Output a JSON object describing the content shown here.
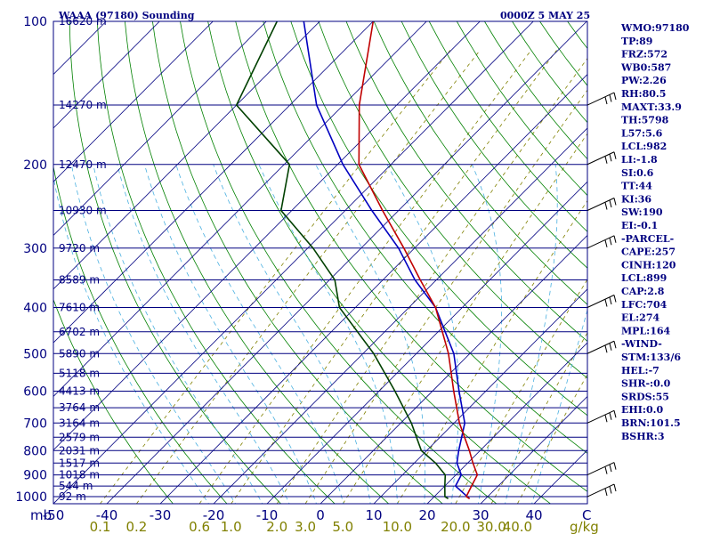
{
  "chart_data": {
    "type": "skew-t",
    "title": "WAAA (97180) Sounding",
    "time": "0000Z  5 MAY 25",
    "pressure_labels": [
      "100",
      "200",
      "300",
      "400",
      "500",
      "600",
      "700",
      "800",
      "900",
      "1000"
    ],
    "pressure_unit": "mb",
    "height_labels": [
      {
        "p": 100,
        "label": "16620 m"
      },
      {
        "p": 150,
        "label": "14270 m"
      },
      {
        "p": 200,
        "label": "12470 m"
      },
      {
        "p": 250,
        "label": "10930 m"
      },
      {
        "p": 300,
        "label": "9720 m"
      },
      {
        "p": 350,
        "label": "8589 m"
      },
      {
        "p": 400,
        "label": "7610 m"
      },
      {
        "p": 450,
        "label": "6702 m"
      },
      {
        "p": 500,
        "label": "5890 m"
      },
      {
        "p": 550,
        "label": "5118 m"
      },
      {
        "p": 600,
        "label": "4413 m"
      },
      {
        "p": 650,
        "label": "3764 m"
      },
      {
        "p": 700,
        "label": "3164 m"
      },
      {
        "p": 750,
        "label": "2579 m"
      },
      {
        "p": 800,
        "label": "2031 m"
      },
      {
        "p": 850,
        "label": "1517 m"
      },
      {
        "p": 900,
        "label": "1018 m"
      },
      {
        "p": 950,
        "label": "544 m"
      },
      {
        "p": 1000,
        "label": "92 m"
      }
    ],
    "temperature_ticks": [
      "-50",
      "-40",
      "-30",
      "-20",
      "-10",
      "0",
      "10",
      "20",
      "30",
      "40"
    ],
    "temperature_unit": "C",
    "mixing_ratio_ticks": [
      "0.1",
      "0.2",
      "0.6",
      "1.0",
      "2.0",
      "3.0",
      "5.0",
      "10.0",
      "20.0",
      "30.0",
      "40.0"
    ],
    "mixing_ratio_unit": "g/kg",
    "temperature_profile": [
      {
        "p": 1010,
        "t": 27
      },
      {
        "p": 1000,
        "t": 26
      },
      {
        "p": 950,
        "t": 25
      },
      {
        "p": 900,
        "t": 24
      },
      {
        "p": 850,
        "t": 21
      },
      {
        "p": 800,
        "t": 18
      },
      {
        "p": 700,
        "t": 11
      },
      {
        "p": 600,
        "t": 4
      },
      {
        "p": 500,
        "t": -4
      },
      {
        "p": 400,
        "t": -15
      },
      {
        "p": 350,
        "t": -23
      },
      {
        "p": 300,
        "t": -32
      },
      {
        "p": 250,
        "t": -43
      },
      {
        "p": 200,
        "t": -56
      },
      {
        "p": 150,
        "t": -67
      },
      {
        "p": 100,
        "t": -80
      }
    ],
    "dewpoint_profile": [
      {
        "p": 1010,
        "t": 23
      },
      {
        "p": 1000,
        "t": 22
      },
      {
        "p": 950,
        "t": 20
      },
      {
        "p": 900,
        "t": 18
      },
      {
        "p": 850,
        "t": 14
      },
      {
        "p": 800,
        "t": 9
      },
      {
        "p": 700,
        "t": 2
      },
      {
        "p": 600,
        "t": -7
      },
      {
        "p": 500,
        "t": -18
      },
      {
        "p": 400,
        "t": -33
      },
      {
        "p": 350,
        "t": -39
      },
      {
        "p": 300,
        "t": -49
      },
      {
        "p": 250,
        "t": -62
      },
      {
        "p": 200,
        "t": -69
      },
      {
        "p": 150,
        "t": -90
      },
      {
        "p": 100,
        "t": -98
      }
    ],
    "parcel_profile": [
      {
        "p": 1010,
        "t": 27
      },
      {
        "p": 950,
        "t": 22
      },
      {
        "p": 900,
        "t": 21
      },
      {
        "p": 850,
        "t": 18
      },
      {
        "p": 800,
        "t": 16
      },
      {
        "p": 700,
        "t": 12
      },
      {
        "p": 600,
        "t": 5
      },
      {
        "p": 500,
        "t": -3
      },
      {
        "p": 400,
        "t": -15
      },
      {
        "p": 350,
        "t": -24
      },
      {
        "p": 300,
        "t": -33
      },
      {
        "p": 250,
        "t": -45
      },
      {
        "p": 200,
        "t": -59
      },
      {
        "p": 150,
        "t": -75
      },
      {
        "p": 100,
        "t": -93
      }
    ],
    "wind_barbs_pressure": [
      1000,
      900,
      700,
      500,
      400,
      300,
      250,
      200,
      150
    ],
    "colors": {
      "frame": "#000080",
      "isobar": "#000080",
      "isotherm": "#000080",
      "dry_adiabat": "#008000",
      "moist_adiabat": "#4ab0e0",
      "mixing_ratio": "#808000",
      "temperature": "#c00000",
      "dewpoint": "#004000",
      "parcel": "#0000c0"
    }
  },
  "stats": [
    "WMO:97180",
    "TP:89",
    "FRZ:572",
    "WB0:587",
    "PW:2.26",
    "RH:80.5",
    "MAXT:33.9",
    "TH:5798",
    "L57:5.6",
    "LCL:982",
    "LI:-1.8",
    "SI:0.6",
    "TT:44",
    "KI:36",
    "SW:190",
    "EI:-0.1",
    "-PARCEL-",
    "CAPE:257",
    "CINH:120",
    "LCL:899",
    "CAP:2.8",
    "LFC:704",
    "EL:274",
    "MPL:164",
    "-WIND-",
    "STM:133/6",
    "HEL:-7",
    "SHR-:0.0",
    "SRDS:55",
    "EHI:0.0",
    "BRN:101.5",
    "BSHR:3"
  ]
}
